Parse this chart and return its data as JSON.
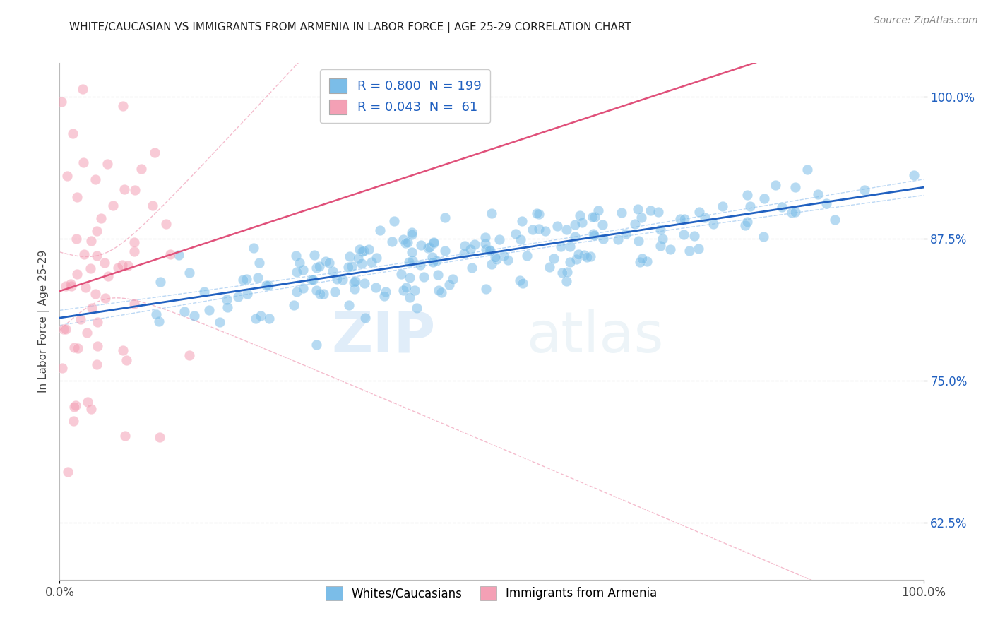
{
  "title": "WHITE/CAUCASIAN VS IMMIGRANTS FROM ARMENIA IN LABOR FORCE | AGE 25-29 CORRELATION CHART",
  "source": "Source: ZipAtlas.com",
  "ylabel": "In Labor Force | Age 25-29",
  "yticks": [
    0.625,
    0.75,
    0.875,
    1.0
  ],
  "ytick_labels": [
    "62.5%",
    "75.0%",
    "87.5%",
    "100.0%"
  ],
  "xticks": [
    0.0,
    1.0
  ],
  "xtick_labels": [
    "0.0%",
    "100.0%"
  ],
  "xlim": [
    0.0,
    1.0
  ],
  "ylim": [
    0.575,
    1.03
  ],
  "blue_color": "#7bbde8",
  "pink_color": "#f4a0b5",
  "blue_line_color": "#2060c0",
  "pink_line_color": "#e0507a",
  "blue_dash_color": "#a0c8f0",
  "pink_dash_color": "#f0a0b8",
  "blue_R": 0.8,
  "blue_N": 199,
  "pink_R": 0.043,
  "pink_N": 61,
  "legend_label_blue": "Whites/Caucasians",
  "legend_label_pink": "Immigrants from Armenia",
  "watermark_zip": "ZIP",
  "watermark_atlas": "atlas",
  "grid_color": "#dddddd",
  "background_color": "#ffffff",
  "title_fontsize": 11,
  "source_fontsize": 10,
  "legend_fontsize": 13,
  "ytick_fontsize": 12,
  "xtick_fontsize": 12,
  "ylabel_fontsize": 11
}
